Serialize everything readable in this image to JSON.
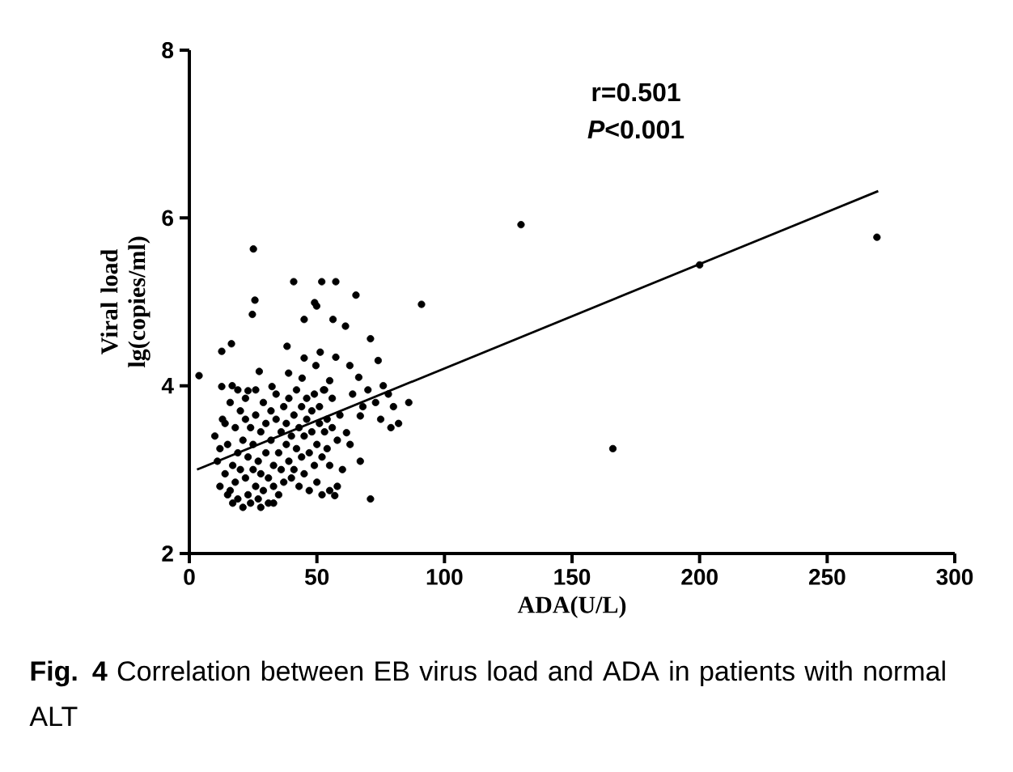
{
  "chart_data": {
    "type": "scatter",
    "xlabel": "ADA(U/L)",
    "ylabel": "Viral load lg(copies/ml)",
    "xlim": [
      0,
      300
    ],
    "xticks": [
      0,
      50,
      100,
      150,
      200,
      250,
      300
    ],
    "ylim": [
      2,
      8
    ],
    "yticks": [
      2,
      4,
      6,
      8
    ],
    "annotations": [
      "r=0.501",
      "*P*<0.001",
      "**Fig. 4**  Correlation between EB virus load and ADA in patients with normal ALT"
    ],
    "series": [
      {
        "color": "#000000",
        "marker": "circle",
        "x": [
          25.1,
          25.7,
          24.7,
          40.9,
          51.9,
          57.4,
          65.3,
          49.1,
          49.9,
          45,
          56.3,
          61.2,
          12.7,
          16.5,
          38.3,
          3.8,
          27.4,
          45,
          51.3,
          57.4,
          49.6,
          62.9,
          38.9,
          44.2,
          55,
          66.4,
          12.7,
          16.8,
          23,
          32.4,
          52.6,
          71,
          91,
          130,
          166,
          200,
          269.5,
          67,
          71,
          57,
          61.6,
          67,
          74,
          76,
          78,
          80,
          73,
          70,
          82,
          79,
          86,
          75,
          68,
          64,
          63,
          60,
          58,
          55,
          10,
          11,
          12,
          13,
          14,
          15,
          15,
          16,
          17,
          17,
          18,
          18,
          19,
          19,
          20,
          20,
          21,
          21,
          22,
          22,
          23,
          23,
          24,
          24,
          25,
          25,
          26,
          26,
          27,
          27,
          28,
          28,
          29,
          29,
          30,
          30,
          31,
          31,
          32,
          32,
          33,
          33,
          34,
          34,
          35,
          35,
          36,
          36,
          37,
          37,
          38,
          38,
          39,
          39,
          40,
          40,
          41,
          41,
          42,
          42,
          43,
          43,
          44,
          44,
          45,
          45,
          46,
          46,
          47,
          47,
          48,
          48,
          49,
          49,
          50,
          50,
          51,
          51,
          52,
          52,
          53,
          53,
          54,
          54,
          55,
          56,
          56,
          58,
          59,
          14,
          16,
          19,
          22,
          26,
          12,
          28,
          33
        ],
        "values": [
          5.63,
          5.02,
          4.85,
          5.24,
          5.24,
          5.24,
          5.08,
          4.99,
          4.95,
          4.79,
          4.79,
          4.71,
          4.41,
          4.5,
          4.47,
          4.12,
          4.17,
          4.33,
          4.4,
          4.34,
          4.24,
          4.24,
          4.15,
          4.09,
          4.06,
          4.1,
          3.99,
          4.0,
          3.94,
          3.99,
          3.95,
          4.56,
          4.97,
          5.92,
          3.25,
          5.44,
          5.77,
          3.1,
          2.65,
          2.69,
          3.44,
          3.64,
          4.3,
          4.0,
          3.9,
          3.75,
          3.8,
          3.95,
          3.55,
          3.5,
          3.8,
          3.6,
          3.75,
          3.9,
          3.3,
          3.0,
          2.8,
          2.75,
          3.4,
          3.1,
          2.8,
          3.6,
          2.95,
          3.3,
          2.7,
          3.8,
          3.05,
          2.6,
          3.5,
          2.85,
          3.2,
          2.65,
          3.7,
          3.0,
          2.55,
          3.35,
          2.9,
          3.85,
          3.15,
          2.7,
          3.5,
          2.6,
          3.0,
          3.3,
          2.8,
          3.65,
          3.1,
          2.65,
          3.45,
          2.95,
          3.8,
          2.75,
          3.2,
          3.55,
          2.9,
          2.6,
          3.35,
          3.7,
          3.05,
          2.8,
          3.6,
          3.9,
          3.2,
          2.7,
          3.45,
          3.0,
          3.75,
          2.85,
          3.3,
          3.55,
          3.1,
          3.85,
          2.9,
          3.4,
          3.65,
          3.0,
          3.25,
          3.95,
          3.5,
          2.8,
          3.15,
          3.75,
          3.4,
          2.95,
          3.6,
          3.85,
          3.2,
          2.75,
          3.45,
          3.7,
          3.05,
          3.9,
          3.3,
          2.85,
          3.55,
          3.75,
          3.15,
          2.7,
          3.45,
          3.95,
          3.25,
          3.6,
          3.05,
          3.5,
          3.85,
          3.35,
          3.65,
          3.55,
          2.75,
          3.95,
          3.6,
          3.95,
          3.25,
          2.55,
          2.6
        ]
      },
      {
        "type": "line",
        "color": "#000000",
        "marker": "none",
        "x": [
          3,
          270
        ],
        "values": [
          3.0,
          6.32
        ]
      }
    ]
  }
}
